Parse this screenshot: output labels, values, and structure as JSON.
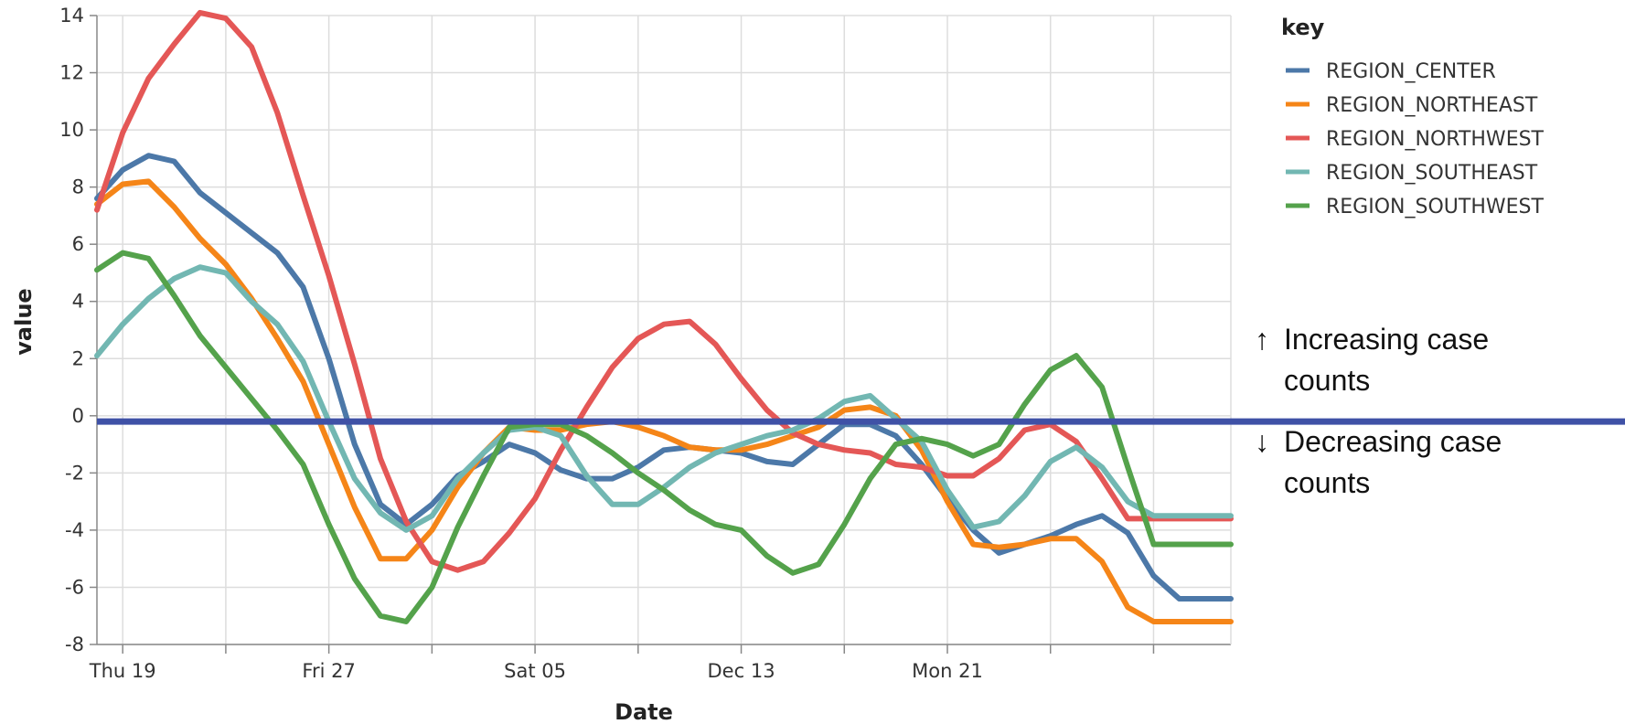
{
  "chart_data": {
    "type": "line",
    "xlabel": "Date",
    "ylabel": "value",
    "ylim": [
      -8,
      14
    ],
    "yticks": [
      -8,
      -6,
      -4,
      -2,
      0,
      2,
      4,
      6,
      8,
      10,
      12,
      14
    ],
    "xlim": [
      "Nov 18",
      "Jan 1"
    ],
    "x_labeled_ticks": [
      {
        "date": "Nov 19",
        "label": "Thu 19"
      },
      {
        "date": "Nov 27",
        "label": "Fri 27"
      },
      {
        "date": "Dec 05",
        "label": "Sat 05"
      },
      {
        "date": "Dec 13",
        "label": "Dec 13"
      },
      {
        "date": "Dec 21",
        "label": "Mon 21"
      }
    ],
    "grid": true,
    "legend": {
      "title": "key",
      "position": "right"
    },
    "x": [
      "Nov 18",
      "Nov 19",
      "Nov 20",
      "Nov 21",
      "Nov 22",
      "Nov 23",
      "Nov 24",
      "Nov 25",
      "Nov 26",
      "Nov 27",
      "Nov 28",
      "Nov 29",
      "Nov 30",
      "Dec 01",
      "Dec 02",
      "Dec 03",
      "Dec 04",
      "Dec 05",
      "Dec 06",
      "Dec 07",
      "Dec 08",
      "Dec 09",
      "Dec 10",
      "Dec 11",
      "Dec 12",
      "Dec 13",
      "Dec 14",
      "Dec 15",
      "Dec 16",
      "Dec 17",
      "Dec 18",
      "Dec 19",
      "Dec 20",
      "Dec 21",
      "Dec 22",
      "Dec 23",
      "Dec 24",
      "Dec 25",
      "Dec 26",
      "Dec 27",
      "Dec 28",
      "Dec 29",
      "Dec 30",
      "Dec 31",
      "Jan 01"
    ],
    "series": [
      {
        "name": "REGION_CENTER",
        "color": "#4c78a8",
        "values": [
          7.6,
          8.6,
          9.1,
          8.9,
          7.8,
          7.1,
          6.4,
          5.7,
          4.5,
          2.0,
          -1.0,
          -3.1,
          -3.8,
          -3.1,
          -2.1,
          -1.6,
          -1.0,
          -1.3,
          -1.9,
          -2.2,
          -2.2,
          -1.8,
          -1.2,
          -1.1,
          -1.2,
          -1.3,
          -1.6,
          -1.7,
          -1.0,
          -0.3,
          -0.3,
          -0.7,
          -1.7,
          -2.9,
          -4.0,
          -4.8,
          -4.5,
          -4.2,
          -3.8,
          -3.5,
          -4.1,
          -5.6,
          -6.4,
          -6.4,
          -6.4
        ]
      },
      {
        "name": "REGION_NORTHEAST",
        "color": "#f58518",
        "values": [
          7.4,
          8.1,
          8.2,
          7.3,
          6.2,
          5.3,
          4.1,
          2.7,
          1.2,
          -1.0,
          -3.2,
          -5.0,
          -5.0,
          -4.0,
          -2.5,
          -1.3,
          -0.4,
          -0.5,
          -0.5,
          -0.3,
          -0.2,
          -0.4,
          -0.7,
          -1.1,
          -1.2,
          -1.2,
          -1.0,
          -0.7,
          -0.4,
          0.2,
          0.3,
          0.0,
          -1.2,
          -3.0,
          -4.5,
          -4.6,
          -4.5,
          -4.3,
          -4.3,
          -5.1,
          -6.7,
          -7.2,
          -7.2,
          -7.2,
          -7.2
        ]
      },
      {
        "name": "REGION_NORTHWEST",
        "color": "#e45756",
        "values": [
          7.2,
          9.9,
          11.8,
          13.0,
          14.1,
          13.9,
          12.9,
          10.6,
          7.7,
          4.9,
          1.8,
          -1.5,
          -3.7,
          -5.1,
          -5.4,
          -5.1,
          -4.1,
          -2.9,
          -1.2,
          0.3,
          1.7,
          2.7,
          3.2,
          3.3,
          2.5,
          1.3,
          0.2,
          -0.6,
          -1.0,
          -1.2,
          -1.3,
          -1.7,
          -1.8,
          -2.1,
          -2.1,
          -1.5,
          -0.5,
          -0.3,
          -0.9,
          -2.2,
          -3.6,
          -3.6,
          -3.6,
          -3.6,
          -3.6
        ]
      },
      {
        "name": "REGION_SOUTHEAST",
        "color": "#72b7b2",
        "values": [
          2.1,
          3.2,
          4.1,
          4.8,
          5.2,
          5.0,
          4.0,
          3.2,
          1.9,
          -0.2,
          -2.2,
          -3.4,
          -4.0,
          -3.5,
          -2.2,
          -1.3,
          -0.5,
          -0.4,
          -0.7,
          -2.1,
          -3.1,
          -3.1,
          -2.5,
          -1.8,
          -1.3,
          -1.0,
          -0.7,
          -0.5,
          -0.1,
          0.5,
          0.7,
          -0.1,
          -0.9,
          -2.6,
          -3.9,
          -3.7,
          -2.8,
          -1.6,
          -1.1,
          -1.8,
          -3.0,
          -3.5,
          -3.5,
          -3.5,
          -3.5
        ]
      },
      {
        "name": "REGION_SOUTHWEST",
        "color": "#54a24b",
        "values": [
          5.1,
          5.7,
          5.5,
          4.2,
          2.8,
          1.7,
          0.6,
          -0.5,
          -1.7,
          -3.8,
          -5.7,
          -7.0,
          -7.2,
          -6.0,
          -3.9,
          -2.1,
          -0.4,
          -0.3,
          -0.3,
          -0.7,
          -1.3,
          -2.0,
          -2.6,
          -3.3,
          -3.8,
          -4.0,
          -4.9,
          -5.5,
          -5.2,
          -3.8,
          -2.2,
          -1.0,
          -0.8,
          -1.0,
          -1.4,
          -1.0,
          0.4,
          1.6,
          2.1,
          1.0,
          -1.8,
          -4.5,
          -4.5,
          -4.5,
          -4.5
        ]
      }
    ],
    "reference_line": {
      "y": -0.2,
      "color": "#3f51a6"
    },
    "annotations": [
      {
        "arrow": "↑",
        "lines": [
          "Increasing case",
          "counts"
        ]
      },
      {
        "arrow": "↓",
        "lines": [
          "Decreasing case",
          "counts"
        ]
      }
    ]
  }
}
